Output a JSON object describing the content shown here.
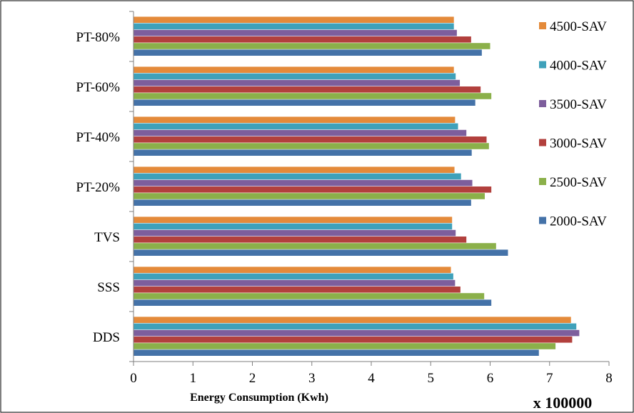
{
  "chart_data": {
    "type": "bar",
    "orientation": "horizontal",
    "categories": [
      "DDS",
      "SSS",
      "TVS",
      "PT-20%",
      "PT-40%",
      "PT-60%",
      "PT-80%"
    ],
    "series": [
      {
        "name": "2000-SAV",
        "color": "#4472A8",
        "values": [
          6.82,
          6.02,
          6.3,
          5.68,
          5.69,
          5.75,
          5.86
        ]
      },
      {
        "name": "2500-SAV",
        "color": "#8BB04A",
        "values": [
          7.1,
          5.9,
          6.1,
          5.91,
          5.98,
          6.02,
          6.0
        ]
      },
      {
        "name": "3000-SAV",
        "color": "#B2403D",
        "values": [
          7.38,
          5.5,
          5.6,
          6.02,
          5.94,
          5.84,
          5.68
        ]
      },
      {
        "name": "3500-SAV",
        "color": "#7D5E9C",
        "values": [
          7.5,
          5.41,
          5.42,
          5.7,
          5.6,
          5.49,
          5.44
        ]
      },
      {
        "name": "4000-SAV",
        "color": "#3FA1BA",
        "values": [
          7.45,
          5.38,
          5.36,
          5.51,
          5.46,
          5.42,
          5.39
        ]
      },
      {
        "name": "4500-SAV",
        "color": "#E48A3A",
        "values": [
          7.36,
          5.34,
          5.36,
          5.4,
          5.41,
          5.39,
          5.39
        ]
      }
    ],
    "xlim": [
      0,
      8
    ],
    "x_ticks": [
      "0",
      "1",
      "2",
      "3",
      "4",
      "5",
      "6",
      "7",
      "8"
    ],
    "xlabel": "Energy Consumption (Kwh)",
    "multiplier": "x 100000",
    "legend_position": "right",
    "grid": false
  }
}
